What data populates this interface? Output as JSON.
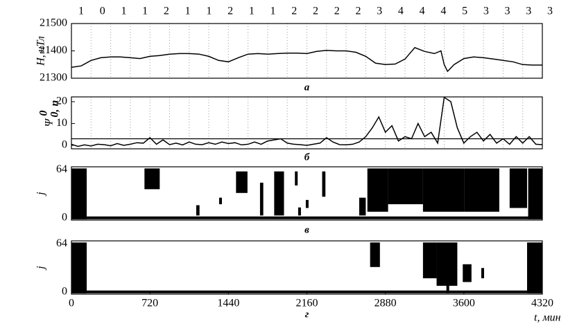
{
  "chart_data": [
    {
      "type": "line",
      "ylabel": "H, нТл",
      "panel_label": "а",
      "top_labels": [
        "1",
        "0",
        "1",
        "1",
        "2",
        "1",
        "1",
        "2",
        "1",
        "1",
        "2",
        "2",
        "2",
        "2",
        "3",
        "4",
        "4",
        "4",
        "5",
        "3",
        "3",
        "3",
        "3"
      ],
      "xlim": [
        0,
        4320
      ],
      "ylim": [
        21300,
        21500
      ],
      "yticks": [
        21300,
        21400,
        21500
      ],
      "xgrid": [
        180,
        360,
        540,
        720,
        900,
        1080,
        1260,
        1440,
        1620,
        1800,
        1980,
        2160,
        2340,
        2520,
        2700,
        2880,
        3060,
        3240,
        3420,
        3600,
        3780,
        3960,
        4140
      ],
      "color": "#000000",
      "x": [
        0,
        90,
        180,
        270,
        360,
        450,
        540,
        630,
        720,
        810,
        900,
        990,
        1080,
        1170,
        1260,
        1350,
        1440,
        1530,
        1620,
        1710,
        1800,
        1890,
        1980,
        2070,
        2160,
        2250,
        2340,
        2430,
        2520,
        2610,
        2700,
        2790,
        2880,
        2970,
        3060,
        3150,
        3240,
        3330,
        3390,
        3420,
        3450,
        3510,
        3600,
        3690,
        3780,
        3870,
        3960,
        4050,
        4140,
        4230,
        4320
      ],
      "values": [
        21340,
        21345,
        21365,
        21375,
        21378,
        21378,
        21375,
        21372,
        21380,
        21383,
        21388,
        21390,
        21390,
        21388,
        21380,
        21365,
        21360,
        21375,
        21388,
        21390,
        21388,
        21390,
        21392,
        21392,
        21390,
        21398,
        21402,
        21400,
        21400,
        21395,
        21380,
        21355,
        21350,
        21352,
        21370,
        21412,
        21398,
        21390,
        21400,
        21350,
        21325,
        21350,
        21372,
        21378,
        21375,
        21370,
        21365,
        21360,
        21350,
        21348,
        21348
      ]
    },
    {
      "type": "line",
      "ylabel": "Ψ",
      "ylabel_sup": "0",
      "ylabel_sub": "0, n",
      "panel_label": "б",
      "xlim": [
        0,
        4320
      ],
      "ylim": [
        -1.6,
        22.2
      ],
      "yticks": [
        0,
        10,
        20
      ],
      "hline": 3,
      "xgrid": [
        180,
        360,
        540,
        720,
        900,
        1080,
        1260,
        1440,
        1620,
        1800,
        1980,
        2160,
        2340,
        2520,
        2700,
        2880,
        3060,
        3240,
        3420,
        3600,
        3780,
        3960,
        4140
      ],
      "color": "#000000",
      "x": [
        0,
        60,
        120,
        180,
        240,
        300,
        360,
        420,
        480,
        540,
        600,
        660,
        720,
        780,
        840,
        900,
        960,
        1020,
        1080,
        1140,
        1200,
        1260,
        1320,
        1380,
        1440,
        1500,
        1560,
        1620,
        1680,
        1740,
        1800,
        1860,
        1920,
        1980,
        2040,
        2100,
        2160,
        2220,
        2280,
        2340,
        2400,
        2460,
        2520,
        2580,
        2640,
        2700,
        2760,
        2820,
        2880,
        2940,
        3000,
        3060,
        3120,
        3180,
        3240,
        3300,
        3360,
        3420,
        3480,
        3540,
        3600,
        3660,
        3720,
        3780,
        3840,
        3900,
        3960,
        4020,
        4080,
        4140,
        4200,
        4260,
        4320
      ],
      "values": [
        0.5,
        -0.5,
        0.2,
        -0.3,
        0.5,
        0.3,
        -0.2,
        0.8,
        0,
        0.5,
        1.2,
        1,
        3.5,
        0.5,
        2.5,
        0.3,
        1,
        0.2,
        1.5,
        0.5,
        0.3,
        1.2,
        0.5,
        1.5,
        0.8,
        1.2,
        0.2,
        0.5,
        1.5,
        0.5,
        2,
        2.5,
        3,
        1,
        0.5,
        0.3,
        0,
        0.5,
        1,
        3.5,
        1.5,
        0.3,
        0.2,
        0.5,
        1.5,
        4,
        8,
        13,
        6,
        9,
        2,
        4,
        3,
        10,
        4,
        6,
        1,
        22,
        20,
        8,
        1,
        4,
        6,
        2,
        5,
        1,
        3,
        0.5,
        4,
        1,
        4,
        0.5,
        0.3
      ]
    },
    {
      "type": "raster",
      "ylabel": "j",
      "panel_label": "в",
      "xlim": [
        0,
        4320
      ],
      "ylim": [
        -3,
        68
      ],
      "yticks": [
        0,
        64
      ],
      "color": "#000000",
      "regions": [
        {
          "t": [
            0,
            4320
          ],
          "j": [
            0,
            0
          ]
        },
        {
          "t": [
            0,
            140
          ],
          "j": [
            0,
            64
          ]
        },
        {
          "t": [
            670,
            810
          ],
          "j": [
            40,
            64
          ]
        },
        {
          "t": [
            1145,
            1175
          ],
          "j": [
            5,
            15
          ]
        },
        {
          "t": [
            1355,
            1375
          ],
          "j": [
            20,
            25
          ]
        },
        {
          "t": [
            1510,
            1615
          ],
          "j": [
            35,
            60
          ]
        },
        {
          "t": [
            1730,
            1760
          ],
          "j": [
            5,
            45
          ]
        },
        {
          "t": [
            1860,
            1950
          ],
          "j": [
            5,
            60
          ]
        },
        {
          "t": [
            2050,
            2075
          ],
          "j": [
            45,
            60
          ]
        },
        {
          "t": [
            2080,
            2100
          ],
          "j": [
            5,
            12
          ]
        },
        {
          "t": [
            2150,
            2170
          ],
          "j": [
            15,
            22
          ]
        },
        {
          "t": [
            2300,
            2330
          ],
          "j": [
            30,
            60
          ]
        },
        {
          "t": [
            2640,
            2700
          ],
          "j": [
            5,
            25
          ]
        },
        {
          "t": [
            2715,
            2905
          ],
          "j": [
            10,
            64
          ]
        },
        {
          "t": [
            2905,
            3225
          ],
          "j": [
            20,
            64
          ]
        },
        {
          "t": [
            3225,
            3605
          ],
          "j": [
            10,
            64
          ]
        },
        {
          "t": [
            3605,
            3925
          ],
          "j": [
            10,
            64
          ]
        },
        {
          "t": [
            4020,
            4180
          ],
          "j": [
            15,
            64
          ]
        },
        {
          "t": [
            4190,
            4320
          ],
          "j": [
            0,
            64
          ]
        }
      ]
    },
    {
      "type": "raster",
      "ylabel": "j",
      "panel_label": "г",
      "xlabel": "t, мин",
      "xlim": [
        0,
        4320
      ],
      "ylim": [
        -3,
        68
      ],
      "yticks": [
        0,
        64
      ],
      "xticks": [
        0,
        720,
        1440,
        2160,
        2880,
        3600,
        4320
      ],
      "color": "#000000",
      "regions": [
        {
          "t": [
            0,
            4320
          ],
          "j": [
            0,
            0
          ]
        },
        {
          "t": [
            0,
            140
          ],
          "j": [
            0,
            64
          ]
        },
        {
          "t": [
            2740,
            2830
          ],
          "j": [
            35,
            64
          ]
        },
        {
          "t": [
            3225,
            3350
          ],
          "j": [
            20,
            64
          ]
        },
        {
          "t": [
            3350,
            3540
          ],
          "j": [
            10,
            64
          ]
        },
        {
          "t": [
            3440,
            3460
          ],
          "j": [
            0,
            10
          ]
        },
        {
          "t": [
            3590,
            3670
          ],
          "j": [
            15,
            35
          ]
        },
        {
          "t": [
            3760,
            3780
          ],
          "j": [
            20,
            30
          ]
        },
        {
          "t": [
            4180,
            4320
          ],
          "j": [
            0,
            64
          ]
        }
      ]
    }
  ]
}
